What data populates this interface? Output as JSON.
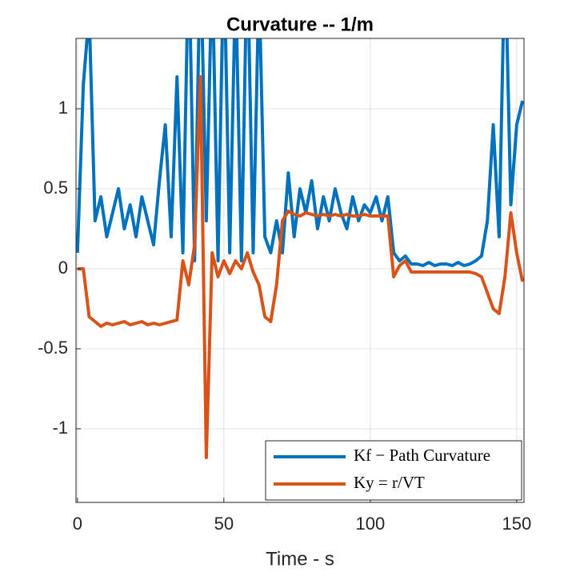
{
  "chart_data": {
    "type": "line",
    "title": "Curvature -- 1/m",
    "xlabel": "Time - s",
    "x": [
      0,
      2,
      4,
      6,
      8,
      10,
      12,
      14,
      16,
      18,
      20,
      22,
      24,
      26,
      28,
      30,
      32,
      34,
      36,
      38,
      40,
      42,
      44,
      46,
      48,
      50,
      52,
      54,
      56,
      58,
      60,
      62,
      64,
      66,
      68,
      70,
      72,
      74,
      76,
      78,
      80,
      82,
      84,
      86,
      88,
      90,
      92,
      94,
      96,
      98,
      100,
      102,
      104,
      106,
      108,
      110,
      112,
      114,
      116,
      118,
      120,
      122,
      124,
      126,
      128,
      130,
      132,
      134,
      136,
      138,
      140,
      142,
      144,
      146,
      148,
      150,
      152
    ],
    "series": [
      {
        "name": "Kf − Path Curvature",
        "color": "#0072bd",
        "values": [
          0.1,
          1.15,
          1.6,
          0.3,
          0.45,
          0.2,
          0.35,
          0.5,
          0.25,
          0.4,
          0.2,
          0.45,
          0.3,
          0.15,
          0.55,
          0.9,
          0.2,
          1.2,
          0.1,
          2,
          0.05,
          2,
          0.3,
          1.9,
          0.05,
          2,
          0.1,
          1.8,
          0.05,
          2,
          0.1,
          1.8,
          0.2,
          0.1,
          0.3,
          0.1,
          0.6,
          0.2,
          0.5,
          0.35,
          0.55,
          0.25,
          0.45,
          0.3,
          0.5,
          0.35,
          0.25,
          0.45,
          0.3,
          0.4,
          0.35,
          0.45,
          0.3,
          0.45,
          0.1,
          0.05,
          0.08,
          0.03,
          0.03,
          0.02,
          0.04,
          0.02,
          0.03,
          0.03,
          0.02,
          0.04,
          0.02,
          0.03,
          0.05,
          0.08,
          0.3,
          0.9,
          0.2,
          2,
          0.4,
          0.9,
          1.05
        ]
      },
      {
        "name": "Ky = r/VT",
        "color": "#d95319",
        "values": [
          0,
          0,
          -0.3,
          -0.33,
          -0.36,
          -0.34,
          -0.35,
          -0.34,
          -0.33,
          -0.35,
          -0.34,
          -0.33,
          -0.35,
          -0.34,
          -0.35,
          -0.34,
          -0.33,
          -0.32,
          0.05,
          -0.1,
          0.15,
          1.2,
          -1.18,
          0.1,
          -0.05,
          0.05,
          -0.03,
          0.05,
          0,
          0.1,
          -0.02,
          -0.1,
          -0.3,
          -0.33,
          -0.1,
          0.3,
          0.36,
          0.34,
          0.33,
          0.35,
          0.34,
          0.33,
          0.34,
          0.33,
          0.34,
          0.33,
          0.34,
          0.33,
          0.33,
          0.34,
          0.33,
          0.33,
          0.33,
          0.33,
          -0.05,
          0.02,
          0.05,
          -0.02,
          -0.02,
          -0.02,
          -0.02,
          -0.02,
          -0.02,
          -0.02,
          -0.02,
          -0.02,
          -0.02,
          -0.02,
          -0.03,
          -0.05,
          -0.15,
          -0.25,
          -0.28,
          -0.05,
          0.35,
          0.1,
          -0.08
        ]
      }
    ],
    "xlim": [
      -0.5,
      152.5
    ],
    "ylim": [
      -1.46,
      1.44
    ],
    "xticks": [
      0,
      50,
      100,
      150
    ],
    "yticks": [
      -1,
      -0.5,
      0,
      0.5,
      1
    ],
    "grid": true,
    "legend_location": "southeast"
  }
}
